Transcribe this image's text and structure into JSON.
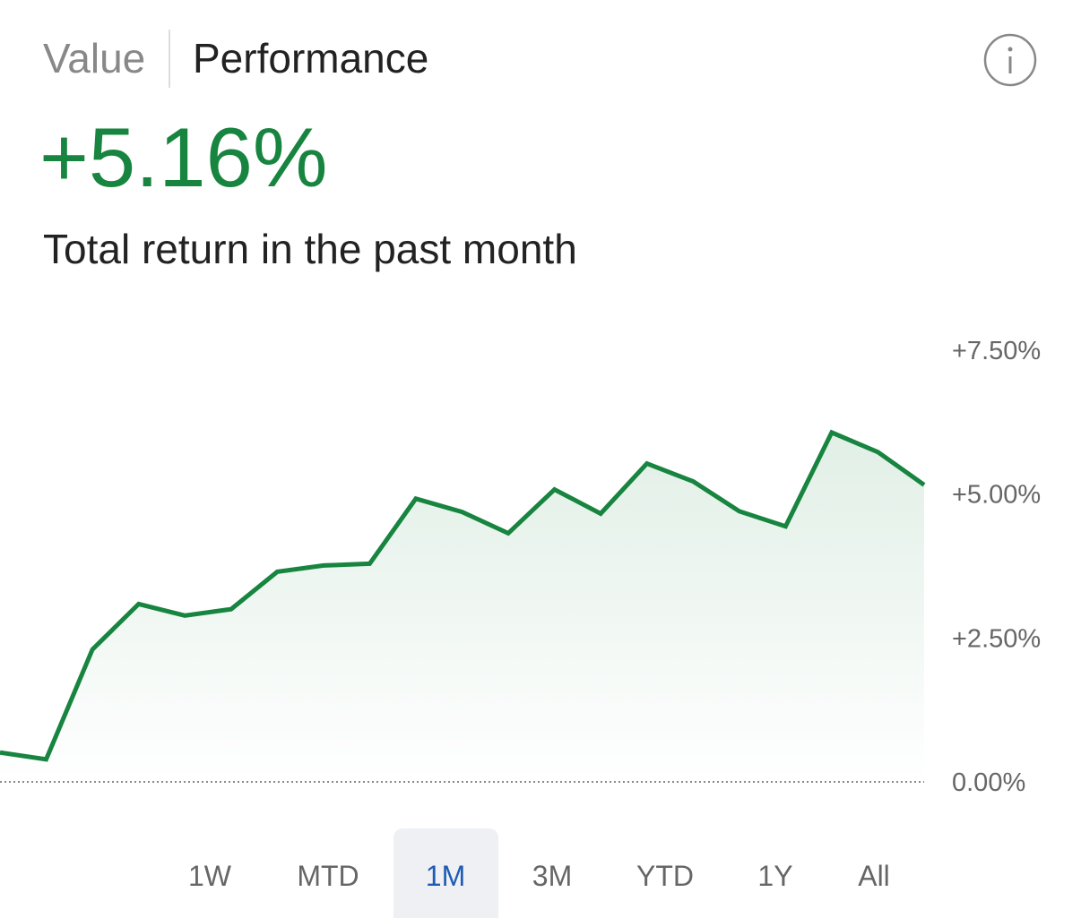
{
  "header": {
    "tabs": [
      "Value",
      "Performance"
    ],
    "active_tab": 1
  },
  "headline": "+5.16%",
  "subtitle": "Total return in the past month",
  "chart_data": {
    "type": "line",
    "color": "#17843f",
    "values": [
      0.51,
      0.39,
      2.3,
      3.09,
      2.89,
      3.0,
      3.65,
      3.76,
      3.79,
      4.92,
      4.69,
      4.32,
      5.08,
      4.66,
      5.53,
      5.22,
      4.7,
      4.44,
      6.07,
      5.73,
      5.16
    ],
    "ylim": [
      0,
      7.5
    ],
    "yticks": [
      {
        "value": 0,
        "label": "0.00%"
      },
      {
        "value": 2.5,
        "label": "+2.50%"
      },
      {
        "value": 5,
        "label": "+5.00%"
      },
      {
        "value": 7.5,
        "label": "+7.50%"
      }
    ]
  },
  "ranges": {
    "options": [
      "1W",
      "MTD",
      "1M",
      "3M",
      "YTD",
      "1Y",
      "All"
    ],
    "selected": 2
  }
}
